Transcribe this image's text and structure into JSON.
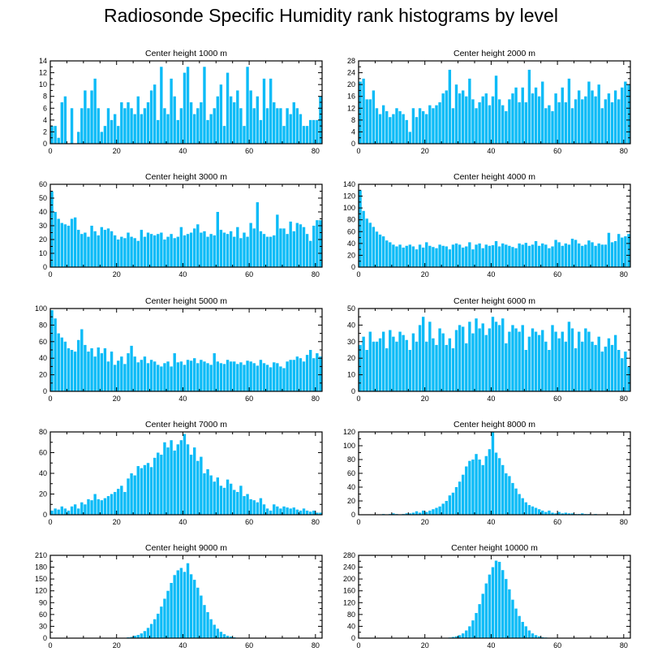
{
  "title": "Radiosonde Specific Humidity rank histograms by level",
  "bar_color": "#0BBBF7",
  "axis_color": "#000000",
  "chart_data": [
    {
      "type": "bar",
      "title": "Center height 1000 m",
      "xlim": [
        0,
        82
      ],
      "ylim": [
        0,
        14
      ],
      "xticks": [
        0,
        20,
        40,
        60,
        80
      ],
      "yticks": [
        0,
        2,
        4,
        6,
        8,
        10,
        12,
        14
      ],
      "values": [
        3,
        3,
        1,
        7,
        8,
        0,
        6,
        0,
        2,
        6,
        9,
        6,
        9,
        11,
        6,
        2,
        3,
        6,
        4,
        5,
        3,
        7,
        6,
        7,
        6,
        5,
        8,
        5,
        6,
        7,
        9,
        10,
        4,
        13,
        6,
        5,
        11,
        8,
        4,
        6,
        12,
        13,
        7,
        5,
        6,
        7,
        13,
        4,
        5,
        6,
        8,
        10,
        3,
        12,
        8,
        7,
        9,
        6,
        3,
        13,
        9,
        6,
        8,
        4,
        11,
        6,
        11,
        7,
        6,
        6,
        3,
        6,
        5,
        7,
        6,
        5,
        3,
        3,
        4,
        4,
        4,
        8
      ]
    },
    {
      "type": "bar",
      "title": "Center height 2000 m",
      "xlim": [
        0,
        82
      ],
      "ylim": [
        0,
        28
      ],
      "xticks": [
        0,
        20,
        40,
        60,
        80
      ],
      "yticks": [
        0,
        4,
        8,
        12,
        16,
        20,
        24,
        28
      ],
      "values": [
        21,
        22,
        15,
        15,
        18,
        12,
        10,
        13,
        11,
        9,
        10,
        12,
        11,
        10,
        8,
        4,
        12,
        9,
        12,
        11,
        10,
        13,
        12,
        13,
        14,
        17,
        18,
        25,
        12,
        20,
        17,
        18,
        16,
        22,
        15,
        12,
        14,
        16,
        17,
        13,
        16,
        23,
        15,
        13,
        11,
        15,
        17,
        19,
        14,
        19,
        14,
        25,
        17,
        19,
        16,
        21,
        12,
        13,
        11,
        17,
        14,
        19,
        14,
        22,
        12,
        15,
        18,
        15,
        16,
        21,
        18,
        16,
        20,
        12,
        15,
        17,
        14,
        18,
        15,
        19,
        21,
        20
      ]
    },
    {
      "type": "bar",
      "title": "Center height 3000 m",
      "xlim": [
        0,
        82
      ],
      "ylim": [
        0,
        60
      ],
      "xticks": [
        0,
        20,
        40,
        60,
        80
      ],
      "yticks": [
        0,
        10,
        20,
        30,
        40,
        50,
        60
      ],
      "values": [
        55,
        40,
        35,
        32,
        31,
        30,
        35,
        36,
        27,
        24,
        25,
        22,
        30,
        26,
        23,
        29,
        27,
        28,
        26,
        23,
        20,
        22,
        21,
        25,
        22,
        21,
        19,
        27,
        22,
        25,
        24,
        23,
        24,
        25,
        20,
        22,
        24,
        21,
        22,
        29,
        23,
        24,
        25,
        28,
        31,
        25,
        26,
        22,
        24,
        23,
        40,
        27,
        25,
        24,
        26,
        22,
        29,
        21,
        25,
        22,
        32,
        28,
        47,
        26,
        24,
        22,
        22,
        23,
        38,
        28,
        28,
        24,
        33,
        26,
        32,
        31,
        29,
        24,
        19,
        30,
        34,
        34
      ]
    },
    {
      "type": "bar",
      "title": "Center height 4000 m",
      "xlim": [
        0,
        82
      ],
      "ylim": [
        0,
        140
      ],
      "xticks": [
        0,
        20,
        40,
        60,
        80
      ],
      "yticks": [
        0,
        20,
        40,
        60,
        80,
        100,
        120,
        140
      ],
      "values": [
        130,
        95,
        82,
        75,
        68,
        60,
        55,
        52,
        45,
        42,
        38,
        35,
        38,
        33,
        36,
        38,
        35,
        30,
        38,
        33,
        42,
        36,
        34,
        32,
        38,
        36,
        35,
        30,
        38,
        40,
        38,
        33,
        35,
        42,
        30,
        38,
        40,
        32,
        38,
        36,
        37,
        44,
        35,
        40,
        38,
        36,
        34,
        32,
        40,
        38,
        41,
        36,
        38,
        44,
        36,
        40,
        38,
        32,
        35,
        46,
        42,
        36,
        40,
        38,
        48,
        46,
        40,
        36,
        38,
        45,
        42,
        36,
        40,
        38,
        38,
        58,
        42,
        44,
        56,
        50,
        52,
        56
      ]
    },
    {
      "type": "bar",
      "title": "Center height 5000 m",
      "xlim": [
        0,
        82
      ],
      "ylim": [
        0,
        100
      ],
      "xticks": [
        0,
        20,
        40,
        60,
        80
      ],
      "yticks": [
        0,
        20,
        40,
        60,
        80,
        100
      ],
      "values": [
        98,
        88,
        70,
        65,
        60,
        52,
        50,
        48,
        62,
        75,
        56,
        48,
        52,
        42,
        53,
        46,
        52,
        36,
        48,
        32,
        37,
        42,
        33,
        46,
        55,
        42,
        35,
        38,
        42,
        34,
        38,
        36,
        32,
        30,
        34,
        36,
        30,
        46,
        35,
        36,
        32,
        38,
        37,
        40,
        34,
        38,
        36,
        34,
        32,
        46,
        36,
        34,
        33,
        38,
        36,
        36,
        33,
        35,
        32,
        37,
        36,
        34,
        31,
        38,
        34,
        32,
        29,
        35,
        34,
        30,
        28,
        36,
        38,
        38,
        42,
        40,
        36,
        44,
        50,
        40,
        46,
        42
      ]
    },
    {
      "type": "bar",
      "title": "Center height 6000 m",
      "xlim": [
        0,
        82
      ],
      "ylim": [
        0,
        50
      ],
      "xticks": [
        0,
        20,
        40,
        60,
        80
      ],
      "yticks": [
        0,
        10,
        20,
        30,
        40,
        50
      ],
      "values": [
        28,
        33,
        25,
        36,
        30,
        30,
        32,
        36,
        26,
        37,
        33,
        30,
        36,
        34,
        31,
        25,
        35,
        30,
        40,
        45,
        30,
        42,
        32,
        28,
        38,
        35,
        28,
        32,
        26,
        37,
        40,
        39,
        29,
        42,
        35,
        44,
        38,
        41,
        34,
        38,
        45,
        42,
        40,
        44,
        29,
        36,
        40,
        38,
        36,
        40,
        25,
        33,
        38,
        36,
        34,
        37,
        30,
        25,
        40,
        36,
        32,
        36,
        30,
        42,
        38,
        26,
        36,
        30,
        38,
        36,
        30,
        28,
        33,
        24,
        27,
        32,
        28,
        34,
        25,
        20,
        24,
        15
      ]
    },
    {
      "type": "bar",
      "title": "Center height 7000 m",
      "xlim": [
        0,
        82
      ],
      "ylim": [
        0,
        80
      ],
      "xticks": [
        0,
        20,
        40,
        60,
        80
      ],
      "yticks": [
        0,
        20,
        40,
        60,
        80
      ],
      "values": [
        4,
        6,
        5,
        8,
        6,
        4,
        8,
        10,
        6,
        12,
        10,
        15,
        14,
        20,
        15,
        14,
        16,
        18,
        20,
        22,
        25,
        28,
        22,
        35,
        40,
        38,
        47,
        45,
        48,
        50,
        46,
        55,
        60,
        58,
        70,
        65,
        72,
        62,
        68,
        72,
        78,
        68,
        58,
        65,
        52,
        56,
        40,
        44,
        38,
        32,
        36,
        28,
        26,
        34,
        30,
        24,
        22,
        28,
        18,
        20,
        15,
        14,
        12,
        16,
        10,
        6,
        4,
        10,
        8,
        6,
        8,
        7,
        6,
        7,
        5,
        4,
        6,
        4,
        3,
        4,
        2,
        2
      ]
    },
    {
      "type": "bar",
      "title": "Center height 8000 m",
      "xlim": [
        0,
        82
      ],
      "ylim": [
        0,
        120
      ],
      "xticks": [
        0,
        20,
        40,
        60,
        80
      ],
      "yticks": [
        0,
        20,
        40,
        60,
        80,
        100,
        120
      ],
      "values": [
        0,
        0,
        0,
        0,
        0,
        0,
        0,
        1,
        0,
        1,
        2,
        1,
        0,
        1,
        2,
        2,
        3,
        5,
        3,
        6,
        4,
        6,
        8,
        10,
        12,
        16,
        20,
        28,
        32,
        40,
        48,
        58,
        70,
        78,
        80,
        88,
        80,
        72,
        85,
        95,
        120,
        90,
        82,
        72,
        60,
        56,
        46,
        38,
        30,
        24,
        18,
        14,
        12,
        10,
        8,
        6,
        4,
        6,
        3,
        2,
        4,
        2,
        3,
        2,
        2,
        1,
        1,
        2,
        1,
        1,
        0,
        1,
        0,
        0,
        0,
        0,
        0,
        0,
        0,
        0,
        0,
        0
      ]
    },
    {
      "type": "bar",
      "title": "Center height 9000 m",
      "xlim": [
        0,
        82
      ],
      "ylim": [
        0,
        210
      ],
      "xticks": [
        0,
        20,
        40,
        60,
        80
      ],
      "yticks": [
        0,
        30,
        60,
        90,
        120,
        150,
        180,
        210
      ],
      "values": [
        0,
        0,
        0,
        0,
        0,
        0,
        0,
        0,
        0,
        0,
        0,
        0,
        0,
        0,
        0,
        0,
        0,
        0,
        0,
        0,
        0,
        0,
        1,
        2,
        3,
        6,
        8,
        12,
        18,
        26,
        36,
        48,
        62,
        80,
        100,
        120,
        140,
        160,
        172,
        178,
        168,
        190,
        162,
        148,
        128,
        108,
        84,
        66,
        48,
        34,
        24,
        16,
        10,
        6,
        4,
        2,
        1,
        1,
        0,
        0,
        0,
        0,
        0,
        0,
        0,
        0,
        0,
        0,
        0,
        0,
        0,
        0,
        0,
        0,
        0,
        0,
        0,
        0,
        0,
        0,
        0,
        0
      ]
    },
    {
      "type": "bar",
      "title": "Center height 10000 m",
      "xlim": [
        0,
        82
      ],
      "ylim": [
        0,
        280
      ],
      "xticks": [
        0,
        20,
        40,
        60,
        80
      ],
      "yticks": [
        0,
        40,
        80,
        120,
        160,
        200,
        240,
        280
      ],
      "values": [
        0,
        0,
        0,
        0,
        0,
        0,
        0,
        0,
        0,
        0,
        0,
        0,
        0,
        0,
        0,
        0,
        0,
        0,
        0,
        0,
        0,
        0,
        0,
        0,
        0,
        0,
        0,
        2,
        4,
        6,
        10,
        16,
        26,
        40,
        60,
        85,
        115,
        150,
        185,
        215,
        240,
        262,
        258,
        230,
        200,
        165,
        130,
        100,
        75,
        55,
        40,
        26,
        16,
        10,
        6,
        3,
        2,
        1,
        0,
        0,
        0,
        0,
        0,
        0,
        0,
        0,
        0,
        0,
        0,
        0,
        0,
        0,
        0,
        0,
        0,
        0,
        0,
        0,
        0,
        0,
        0,
        0
      ]
    }
  ]
}
